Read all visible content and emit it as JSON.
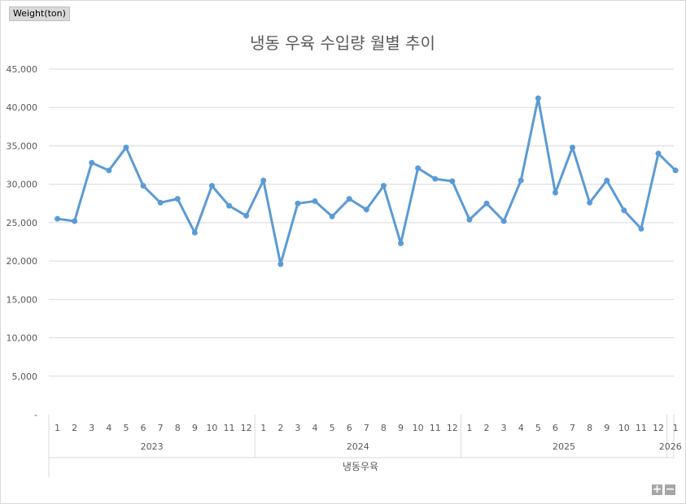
{
  "field_button": {
    "label": "Weight(ton)"
  },
  "zoom": {
    "plus": "+",
    "minus": "−"
  },
  "chart_data": {
    "type": "line",
    "title": "냉동 우육 수입량 월별 추이",
    "xlabel": "냉동우육",
    "ylabel": "",
    "ylim": [
      0,
      45000
    ],
    "yticks": [
      {
        "value": 0,
        "label": "-"
      },
      {
        "value": 5000,
        "label": "5,000"
      },
      {
        "value": 10000,
        "label": "10,000"
      },
      {
        "value": 15000,
        "label": "15,000"
      },
      {
        "value": 20000,
        "label": "20,000"
      },
      {
        "value": 25000,
        "label": "25,000"
      },
      {
        "value": 30000,
        "label": "30,000"
      },
      {
        "value": 35000,
        "label": "35,000"
      },
      {
        "value": 40000,
        "label": "40,000"
      },
      {
        "value": 45000,
        "label": "45,000"
      }
    ],
    "grid": true,
    "legend": "none",
    "line_color": "#5b9bd5",
    "years": [
      {
        "label": "2023",
        "months": 12
      },
      {
        "label": "2024",
        "months": 12
      },
      {
        "label": "2025",
        "months": 12
      },
      {
        "label": "2026",
        "months": 1
      }
    ],
    "categories": [
      "1",
      "2",
      "3",
      "4",
      "5",
      "6",
      "7",
      "8",
      "9",
      "10",
      "11",
      "12",
      "1",
      "2",
      "3",
      "4",
      "5",
      "6",
      "7",
      "8",
      "9",
      "10",
      "11",
      "12",
      "1",
      "2",
      "3",
      "4",
      "5",
      "6",
      "7",
      "8",
      "9",
      "10",
      "11",
      "12",
      "1"
    ],
    "series": [
      {
        "values": [
          25500,
          25200,
          32800,
          31800,
          34800,
          29800,
          27600,
          28100,
          23700,
          29800,
          27200,
          25900,
          30500,
          19600,
          27500,
          27800,
          25800,
          28100,
          26700,
          29800,
          22300,
          32100,
          30700,
          30400,
          25400,
          27500,
          25200,
          30500,
          41200,
          28900,
          34800,
          27600,
          30500,
          26600,
          24200,
          34000,
          31800
        ]
      }
    ]
  }
}
